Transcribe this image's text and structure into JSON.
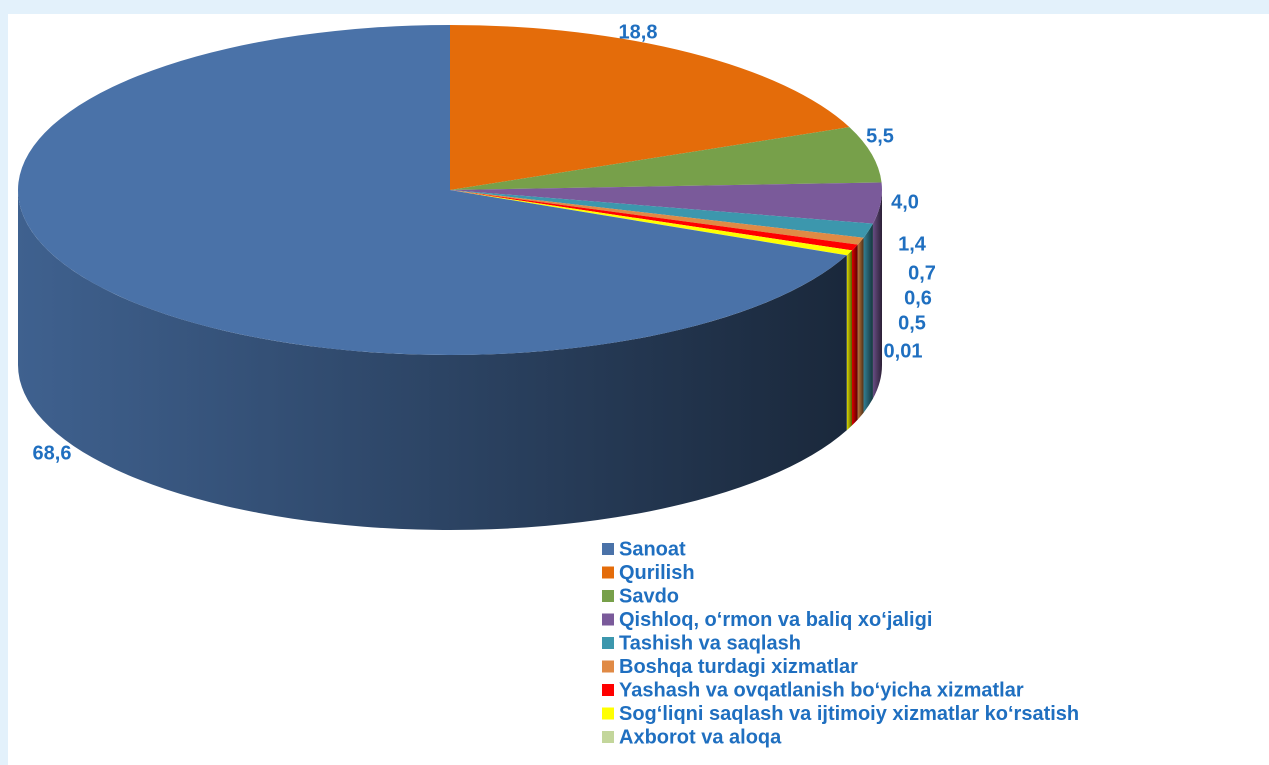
{
  "chart_data": {
    "type": "pie",
    "categories": [
      "Sanoat",
      "Qurilish",
      "Savdo",
      "Qishloq, o‘rmon va baliq xo‘jaligi",
      "Tashish va saqlash",
      "Boshqa turdagi xizmatlar",
      "Yashash va ovqatlanish bo‘yicha xizmatlar",
      "Sog‘liqni saqlash va ijtimoiy xizmatlar ko‘rsatish",
      "Axborot va aloqa"
    ],
    "values": [
      68.6,
      18.8,
      5.5,
      4.0,
      1.4,
      0.7,
      0.6,
      0.5,
      0.01
    ],
    "value_labels": [
      "68,6",
      "18,8",
      "5,5",
      "4,0",
      "1,4",
      "0,7",
      "0,6",
      "0,5",
      "0,01"
    ],
    "colors": [
      "#4a72a8",
      "#e46c0a",
      "#77a04a",
      "#7a5a9a",
      "#3c97ad",
      "#e08a45",
      "#ff0000",
      "#ffff00",
      "#c3d69b"
    ],
    "legend": "bottom-right"
  }
}
